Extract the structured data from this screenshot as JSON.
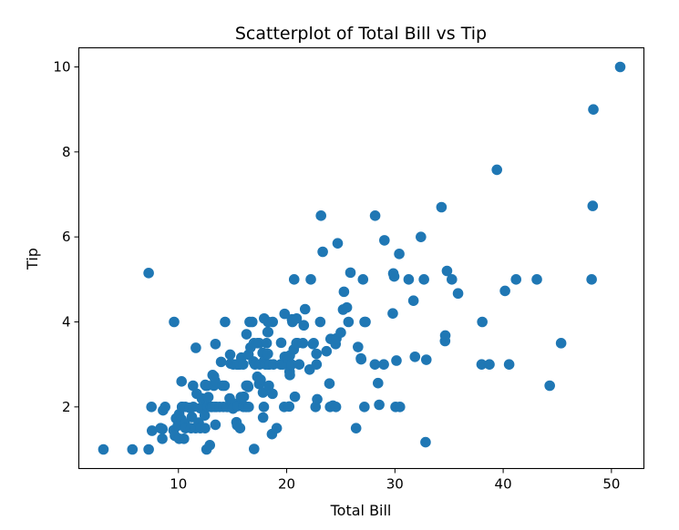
{
  "chart_data": {
    "type": "scatter",
    "title": "Scatterplot of Total Bill vs Tip",
    "xlabel": "Total Bill",
    "ylabel": "Tip",
    "xlim": [
      0.8,
      53.0
    ],
    "ylim": [
      0.55,
      10.45
    ],
    "xticks": [
      10,
      20,
      30,
      40,
      50
    ],
    "yticks": [
      2,
      4,
      6,
      8,
      10
    ],
    "grid": false,
    "marker_color": "#1f77b4",
    "points": [
      [
        3.07,
        1.0
      ],
      [
        5.75,
        1.0
      ],
      [
        7.25,
        1.0
      ],
      [
        7.25,
        5.15
      ],
      [
        7.51,
        2.0
      ],
      [
        7.56,
        1.44
      ],
      [
        8.35,
        1.5
      ],
      [
        8.51,
        1.25
      ],
      [
        8.52,
        1.48
      ],
      [
        8.58,
        1.92
      ],
      [
        8.77,
        2.0
      ],
      [
        9.55,
        1.45
      ],
      [
        9.6,
        4.0
      ],
      [
        9.68,
        1.32
      ],
      [
        9.78,
        1.73
      ],
      [
        9.94,
        1.56
      ],
      [
        10.07,
        1.83
      ],
      [
        10.07,
        1.25
      ],
      [
        10.27,
        1.71
      ],
      [
        10.29,
        2.6
      ],
      [
        10.33,
        1.67
      ],
      [
        10.33,
        2.0
      ],
      [
        10.34,
        2.0
      ],
      [
        10.51,
        1.25
      ],
      [
        10.59,
        1.61
      ],
      [
        10.63,
        2.0
      ],
      [
        10.65,
        1.5
      ],
      [
        11.02,
        1.98
      ],
      [
        11.17,
        1.5
      ],
      [
        11.24,
        1.76
      ],
      [
        11.35,
        2.5
      ],
      [
        11.38,
        2.0
      ],
      [
        11.59,
        1.5
      ],
      [
        11.61,
        3.39
      ],
      [
        11.69,
        2.31
      ],
      [
        11.87,
        1.63
      ],
      [
        12.02,
        1.97
      ],
      [
        12.03,
        1.5
      ],
      [
        12.16,
        2.2
      ],
      [
        12.26,
        2.0
      ],
      [
        12.43,
        1.8
      ],
      [
        12.46,
        1.5
      ],
      [
        12.48,
        2.52
      ],
      [
        12.54,
        2.5
      ],
      [
        12.6,
        1.0
      ],
      [
        12.66,
        2.5
      ],
      [
        12.69,
        2.0
      ],
      [
        12.74,
        2.01
      ],
      [
        12.76,
        2.23
      ],
      [
        12.9,
        1.1
      ],
      [
        13.0,
        2.0
      ],
      [
        13.03,
        2.0
      ],
      [
        13.13,
        2.0
      ],
      [
        13.16,
        2.75
      ],
      [
        13.27,
        2.5
      ],
      [
        13.28,
        2.72
      ],
      [
        13.37,
        2.0
      ],
      [
        13.39,
        2.61
      ],
      [
        13.42,
        3.48
      ],
      [
        13.42,
        1.58
      ],
      [
        13.51,
        2.0
      ],
      [
        13.81,
        2.0
      ],
      [
        13.94,
        3.06
      ],
      [
        14.07,
        2.5
      ],
      [
        14.15,
        2.0
      ],
      [
        14.26,
        2.5
      ],
      [
        14.31,
        4.0
      ],
      [
        14.48,
        2.0
      ],
      [
        14.52,
        2.0
      ],
      [
        14.73,
        2.2
      ],
      [
        14.78,
        3.23
      ],
      [
        14.83,
        3.02
      ],
      [
        15.01,
        2.09
      ],
      [
        15.04,
        1.96
      ],
      [
        15.06,
        3.0
      ],
      [
        15.36,
        1.64
      ],
      [
        15.38,
        3.0
      ],
      [
        15.42,
        1.57
      ],
      [
        15.48,
        2.02
      ],
      [
        15.53,
        3.0
      ],
      [
        15.69,
        1.5
      ],
      [
        15.69,
        3.0
      ],
      [
        15.77,
        2.23
      ],
      [
        15.81,
        3.16
      ],
      [
        15.98,
        2.03
      ],
      [
        15.98,
        3.0
      ],
      [
        16.0,
        2.0
      ],
      [
        16.04,
        2.24
      ],
      [
        16.21,
        2.0
      ],
      [
        16.27,
        2.5
      ],
      [
        16.29,
        3.71
      ],
      [
        16.31,
        2.0
      ],
      [
        16.4,
        2.5
      ],
      [
        16.45,
        2.47
      ],
      [
        16.47,
        3.23
      ],
      [
        16.49,
        2.0
      ],
      [
        16.58,
        4.0
      ],
      [
        16.66,
        3.4
      ],
      [
        16.82,
        4.0
      ],
      [
        16.93,
        3.07
      ],
      [
        16.97,
        3.5
      ],
      [
        16.99,
        1.01
      ],
      [
        17.07,
        3.0
      ],
      [
        17.29,
        2.71
      ],
      [
        17.31,
        3.5
      ],
      [
        17.46,
        2.54
      ],
      [
        17.47,
        3.5
      ],
      [
        17.51,
        3.0
      ],
      [
        17.59,
        2.64
      ],
      [
        17.78,
        3.27
      ],
      [
        17.81,
        2.34
      ],
      [
        17.82,
        1.75
      ],
      [
        17.89,
        2.0
      ],
      [
        17.92,
        4.08
      ],
      [
        17.92,
        3.08
      ],
      [
        18.04,
        3.0
      ],
      [
        18.15,
        3.5
      ],
      [
        18.24,
        3.76
      ],
      [
        18.26,
        3.25
      ],
      [
        18.28,
        4.0
      ],
      [
        18.29,
        3.76
      ],
      [
        18.29,
        3.0
      ],
      [
        18.35,
        2.5
      ],
      [
        18.43,
        3.0
      ],
      [
        18.64,
        1.36
      ],
      [
        18.69,
        2.31
      ],
      [
        18.71,
        4.0
      ],
      [
        18.78,
        3.0
      ],
      [
        19.08,
        1.5
      ],
      [
        19.44,
        3.0
      ],
      [
        19.49,
        3.51
      ],
      [
        19.65,
        3.0
      ],
      [
        19.77,
        2.0
      ],
      [
        19.81,
        4.19
      ],
      [
        19.82,
        3.18
      ],
      [
        20.08,
        3.15
      ],
      [
        20.23,
        2.01
      ],
      [
        20.27,
        2.83
      ],
      [
        20.29,
        3.21
      ],
      [
        20.29,
        2.75
      ],
      [
        20.45,
        3.0
      ],
      [
        20.49,
        4.06
      ],
      [
        20.53,
        4.0
      ],
      [
        20.65,
        3.35
      ],
      [
        20.69,
        5.0
      ],
      [
        20.76,
        2.24
      ],
      [
        20.9,
        3.5
      ],
      [
        20.92,
        4.08
      ],
      [
        21.01,
        3.5
      ],
      [
        21.16,
        3.0
      ],
      [
        21.5,
        3.5
      ],
      [
        21.58,
        3.92
      ],
      [
        21.7,
        4.3
      ],
      [
        22.12,
        2.88
      ],
      [
        22.23,
        5.0
      ],
      [
        22.42,
        3.48
      ],
      [
        22.49,
        3.5
      ],
      [
        22.67,
        2.0
      ],
      [
        22.75,
        3.25
      ],
      [
        22.76,
        3.0
      ],
      [
        22.82,
        2.18
      ],
      [
        23.1,
        4.0
      ],
      [
        23.17,
        6.5
      ],
      [
        23.33,
        5.65
      ],
      [
        23.68,
        3.31
      ],
      [
        23.95,
        2.55
      ],
      [
        24.01,
        2.0
      ],
      [
        24.06,
        3.6
      ],
      [
        24.27,
        2.03
      ],
      [
        24.52,
        3.48
      ],
      [
        24.55,
        2.0
      ],
      [
        24.59,
        3.61
      ],
      [
        24.71,
        5.85
      ],
      [
        25.0,
        3.75
      ],
      [
        25.21,
        4.29
      ],
      [
        25.29,
        4.71
      ],
      [
        25.56,
        4.34
      ],
      [
        25.71,
        4.0
      ],
      [
        25.89,
        5.16
      ],
      [
        26.41,
        1.5
      ],
      [
        26.59,
        3.41
      ],
      [
        26.86,
        3.14
      ],
      [
        26.88,
        3.12
      ],
      [
        27.05,
        5.0
      ],
      [
        27.18,
        2.0
      ],
      [
        27.2,
        4.0
      ],
      [
        27.28,
        4.0
      ],
      [
        28.15,
        3.0
      ],
      [
        28.17,
        6.5
      ],
      [
        28.44,
        2.56
      ],
      [
        28.55,
        2.05
      ],
      [
        28.97,
        3.0
      ],
      [
        29.03,
        5.92
      ],
      [
        29.8,
        4.2
      ],
      [
        29.85,
        5.14
      ],
      [
        29.93,
        5.07
      ],
      [
        30.06,
        2.0
      ],
      [
        30.14,
        3.09
      ],
      [
        30.4,
        5.6
      ],
      [
        30.46,
        2.0
      ],
      [
        31.27,
        5.0
      ],
      [
        31.71,
        4.5
      ],
      [
        31.85,
        3.18
      ],
      [
        32.4,
        6.0
      ],
      [
        32.68,
        5.0
      ],
      [
        32.83,
        1.17
      ],
      [
        32.9,
        3.11
      ],
      [
        34.3,
        6.7
      ],
      [
        34.63,
        3.55
      ],
      [
        34.65,
        3.68
      ],
      [
        34.81,
        5.2
      ],
      [
        35.26,
        5.0
      ],
      [
        35.83,
        4.67
      ],
      [
        38.01,
        3.0
      ],
      [
        38.07,
        4.0
      ],
      [
        38.73,
        3.0
      ],
      [
        39.42,
        7.58
      ],
      [
        40.17,
        4.73
      ],
      [
        40.55,
        3.0
      ],
      [
        41.19,
        5.0
      ],
      [
        43.11,
        5.0
      ],
      [
        44.3,
        2.5
      ],
      [
        45.35,
        3.5
      ],
      [
        48.17,
        5.0
      ],
      [
        48.27,
        6.73
      ],
      [
        48.33,
        9.0
      ],
      [
        50.81,
        10.0
      ]
    ]
  }
}
